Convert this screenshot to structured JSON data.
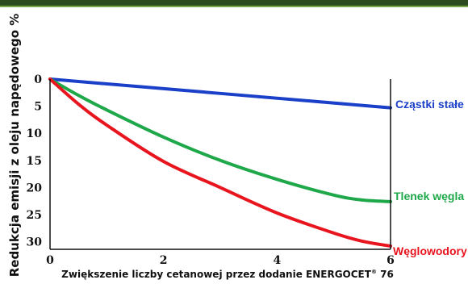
{
  "chart_data": {
    "type": "line",
    "xlabel": "Zwiększenie liczby cetanowej przez dodanie ENERGOCET",
    "xlabel_sup": "®",
    "xlabel_tail": " 76",
    "ylabel": "Redukcja emisji z oleju napędowego %",
    "xlim": [
      0,
      6
    ],
    "ylim": [
      0,
      32
    ],
    "y_inverted": true,
    "x_ticks": [
      "0",
      "2",
      "4",
      "6"
    ],
    "y_ticks": [
      "0",
      "5",
      "10",
      "15",
      "20",
      "25",
      "30"
    ],
    "grid": false,
    "legend": "inline-right",
    "series": [
      {
        "name": "Cząstki stałe",
        "color": "#1a3fc8",
        "x": [
          0,
          6
        ],
        "y": [
          0,
          5.3
        ]
      },
      {
        "name": "Tlenek węgla",
        "color": "#1fa84a",
        "x": [
          0,
          0.5,
          1,
          2,
          3,
          4,
          5,
          5.5,
          6
        ],
        "y": [
          0,
          3.0,
          5.7,
          10.7,
          15.0,
          18.5,
          21.4,
          22.3,
          22.6
        ]
      },
      {
        "name": "Węglowodory",
        "color": "#e8141e",
        "x": [
          0,
          0.5,
          1,
          2,
          3,
          4,
          5,
          5.5,
          6
        ],
        "y": [
          0,
          4.6,
          8.5,
          15.2,
          20.0,
          24.7,
          28.4,
          29.9,
          30.8
        ]
      }
    ]
  }
}
